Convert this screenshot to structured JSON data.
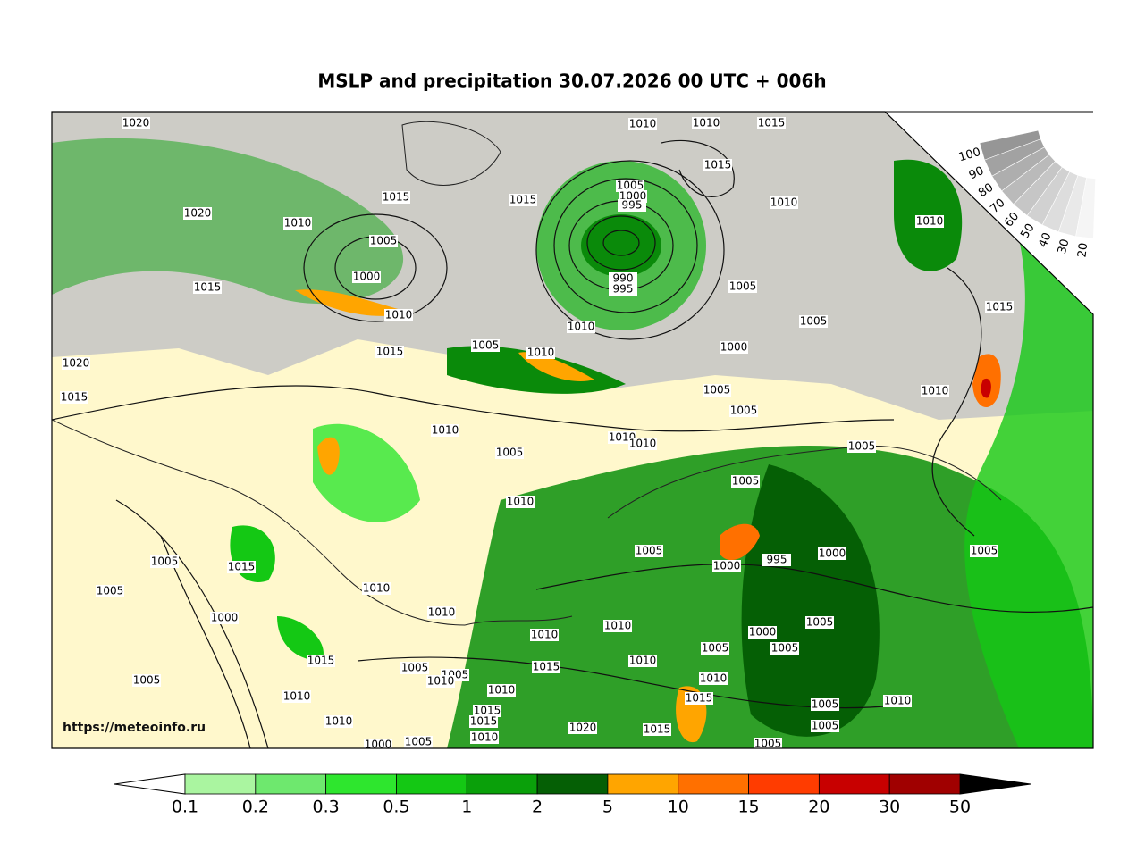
{
  "header": {
    "title": "MSLP and precipitation 30.07.2026 00 UTC + 006h"
  },
  "map": {
    "isobar_labels": [
      1020,
      1010,
      1010,
      1015,
      1015,
      1005,
      1000,
      995,
      1015,
      1015,
      1020,
      1010,
      1010,
      1010,
      1005,
      1000,
      990,
      995,
      1005,
      1015,
      1010,
      1010,
      1005,
      1015,
      1005,
      1010,
      1000,
      1015,
      1020,
      1015,
      1005,
      1010,
      1005,
      1010,
      1010,
      1010,
      1005,
      1005,
      1005,
      1010,
      1005,
      995,
      1000,
      1000,
      1005,
      1005,
      1015,
      1005,
      1010,
      1010,
      1000,
      1010,
      1005,
      1000,
      1010,
      1005,
      1005,
      1010,
      1015,
      1015,
      1005,
      1005,
      1010,
      1005,
      1010,
      1010,
      1010,
      1015,
      1015,
      1005,
      1010,
      1010,
      1015,
      1020,
      1005,
      1015,
      1010,
      1000,
      1005,
      1005
    ],
    "source": "https://meteoinfo.ru"
  },
  "cloud_scale": {
    "labels": [
      100,
      90,
      80,
      70,
      60,
      50,
      40,
      30,
      20
    ]
  },
  "precip_colorbar": {
    "labels": [
      0.1,
      0.2,
      0.3,
      0.5,
      1,
      2,
      5,
      10,
      15,
      20,
      30,
      50
    ],
    "colors": [
      "#aaf5a0",
      "#6ee86e",
      "#2ee62e",
      "#14c814",
      "#0aa00a",
      "#055f05",
      "#ffa500",
      "#ff7000",
      "#ff3c00",
      "#c80000",
      "#a00000"
    ]
  }
}
